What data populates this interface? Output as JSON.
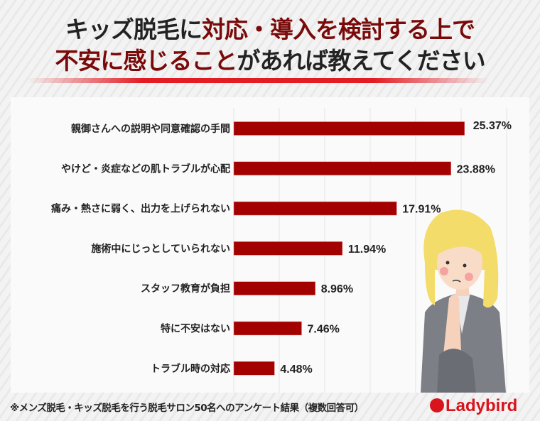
{
  "title": {
    "line1_black": "キッズ脱毛に",
    "line1_red": "対応・導入を検討する上で",
    "line2_red": "不安に感じること",
    "line2_black": "があれば教えてください"
  },
  "footnote": "※メンズ脱毛・キッズ脱毛を行う脱毛サロン50名へのアンケート結果（複数回答可）",
  "logo": "Ladybird",
  "colors": {
    "bar": "#a30000",
    "accent": "#e31b23",
    "title_red": "#7a0a0a"
  },
  "chart_data": {
    "type": "bar",
    "orientation": "horizontal",
    "categories": [
      "親御さんへの説明や同意確認の手間",
      "やけど・炎症などの肌トラブルが心配",
      "痛み・熱さに弱く、出力を上げられない",
      "施術中にじっとしていられない",
      "スタッフ教育が負担",
      "特に不安はない",
      "トラブル時の対応"
    ],
    "values": [
      25.37,
      23.88,
      17.91,
      11.94,
      8.96,
      7.46,
      4.48
    ],
    "labels": [
      "25.37%",
      "23.88%",
      "17.91%",
      "11.94%",
      "8.96%",
      "7.46%",
      "4.48%"
    ],
    "xlim": [
      0,
      30
    ],
    "grid": true,
    "grid_step": 5,
    "unit": "%"
  }
}
